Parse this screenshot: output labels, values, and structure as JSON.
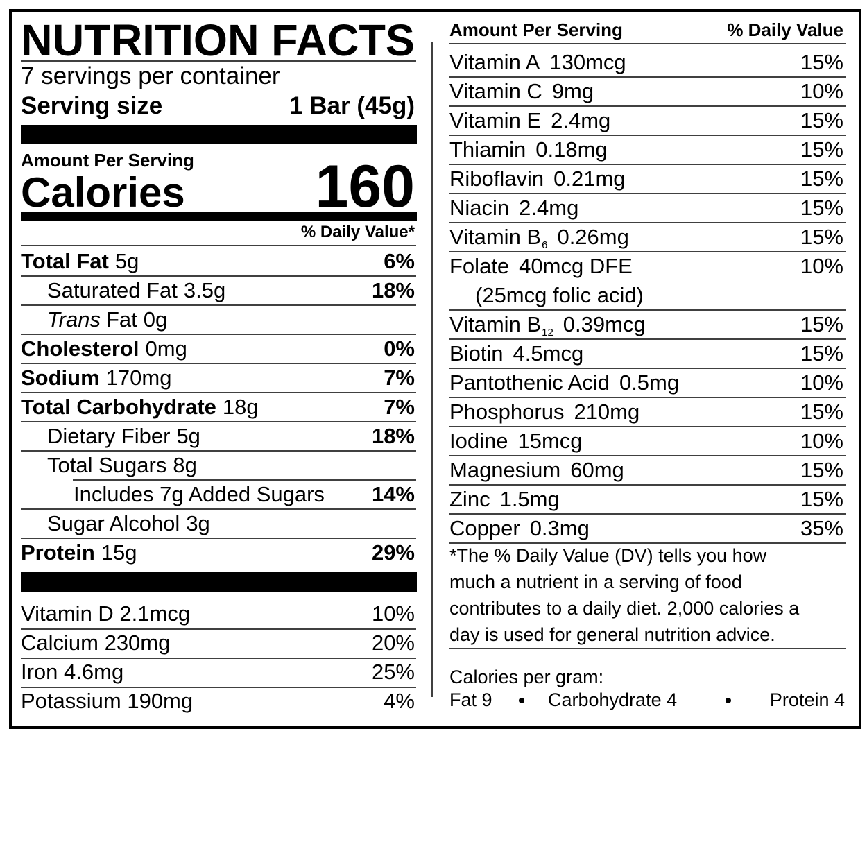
{
  "title": "NUTRITION FACTS",
  "servings": "7 servings per container",
  "serving_size": {
    "label": "Serving size",
    "value": "1 Bar (45g)"
  },
  "amount_header": "Amount Per Serving",
  "calories": {
    "label": "Calories",
    "value": "160"
  },
  "dv_header": "% Daily Value*",
  "nutrients": [
    {
      "name": "Total Fat",
      "amount": "5g",
      "dv": "6%"
    },
    {
      "name": "Saturated Fat",
      "amount": "3.5g",
      "dv": "18%"
    },
    {
      "name_italic": "Trans",
      "name": "Fat",
      "amount": "0g"
    },
    {
      "name": "Cholesterol",
      "amount": "0mg",
      "dv": "0%"
    },
    {
      "name": "Sodium",
      "amount": "170mg",
      "dv": "7%"
    },
    {
      "name": "Total Carbohydrate",
      "amount": "18g",
      "dv": "7%"
    },
    {
      "name": "Dietary Fiber",
      "amount": "5g",
      "dv": "18%"
    },
    {
      "name": "Total Sugars",
      "amount": "8g"
    },
    {
      "name": "Includes 7g Added Sugars",
      "dv": "14%"
    },
    {
      "name": "Sugar Alcohol",
      "amount": "3g"
    },
    {
      "name": "Protein",
      "amount": "15g",
      "dv": "29%"
    }
  ],
  "left_vitamins": [
    {
      "name": "Vitamin D 2.1mcg",
      "dv": "10%"
    },
    {
      "name": "Calcium 230mg",
      "dv": "20%"
    },
    {
      "name": "Iron 4.6mg",
      "dv": "25%"
    },
    {
      "name": "Potassium 190mg",
      "dv": "4%"
    }
  ],
  "right_header": {
    "amount": "Amount Per Serving",
    "dv": "% Daily Value"
  },
  "right_vitamins": [
    {
      "name": "Vitamin A",
      "amount": "130mcg",
      "dv": "15%"
    },
    {
      "name": "Vitamin C",
      "amount": "9mg",
      "dv": "10%"
    },
    {
      "name": "Vitamin E",
      "amount": "2.4mg",
      "dv": "15%"
    },
    {
      "name": "Thiamin",
      "amount": "0.18mg",
      "dv": "15%"
    },
    {
      "name": "Riboflavin",
      "amount": "0.21mg",
      "dv": "15%"
    },
    {
      "name": "Niacin",
      "amount": "2.4mg",
      "dv": "15%"
    },
    {
      "name": "Vitamin B",
      "sub": "6",
      "amount": "0.26mg",
      "dv": "15%"
    },
    {
      "name": "Folate",
      "amount": "40mcg DFE",
      "dv": "10%",
      "note": "(25mcg folic acid)"
    },
    {
      "name": "Vitamin B",
      "sub": "12",
      "amount": "0.39mcg",
      "dv": "15%"
    },
    {
      "name": "Biotin",
      "amount": "4.5mcg",
      "dv": "15%"
    },
    {
      "name": "Pantothenic Acid",
      "amount": "0.5mg",
      "dv": "10%"
    },
    {
      "name": "Phosphorus",
      "amount": "210mg",
      "dv": "15%"
    },
    {
      "name": "Iodine",
      "amount": "15mcg",
      "dv": "10%"
    },
    {
      "name": "Magnesium",
      "amount": "60mg",
      "dv": "15%"
    },
    {
      "name": "Zinc",
      "amount": "1.5mg",
      "dv": "15%"
    },
    {
      "name": "Copper",
      "amount": "0.3mg",
      "dv": "35%"
    }
  ],
  "footnote": [
    "*The % Daily Value (DV) tells you how",
    "much a nutrient in a serving of food",
    "contributes to a daily diet. 2,000 calories a",
    "day is used for general nutrition advice."
  ],
  "calories_per_gram": {
    "label": "Calories per gram:",
    "items": [
      "Fat 9",
      "Carbohydrate 4",
      "Protein 4"
    ]
  }
}
